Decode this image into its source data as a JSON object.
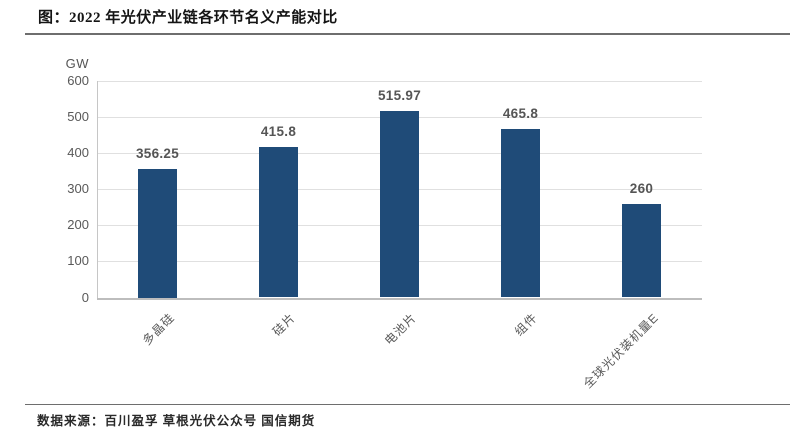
{
  "header": {
    "title": "图：2022 年光伏产业链各环节名义产能对比"
  },
  "footer": {
    "source": "数据来源：百川盈孚 草根光伏公众号 国信期货"
  },
  "chart_data": {
    "type": "bar",
    "title": "2022 年光伏产业链各环节名义产能对比",
    "unit_label": "GW",
    "categories": [
      "多晶硅",
      "硅片",
      "电池片",
      "组件",
      "全球光伏装机量E"
    ],
    "values": [
      356.25,
      415.8,
      515.97,
      465.8,
      260
    ],
    "xlabel": "",
    "ylabel": "GW",
    "ylim": [
      0,
      600
    ],
    "yticks": [
      600,
      500,
      400,
      300,
      200,
      100,
      0
    ],
    "grid": true,
    "legend_position": "none",
    "bar_color": "#1F4B78"
  },
  "colors": {
    "bar": "#1F4B78",
    "gridline": "#e0e0e0",
    "axis": "#bdbdbd",
    "tick_text": "#595959",
    "value_text": "#555555",
    "rule": "#6e6e6e"
  }
}
